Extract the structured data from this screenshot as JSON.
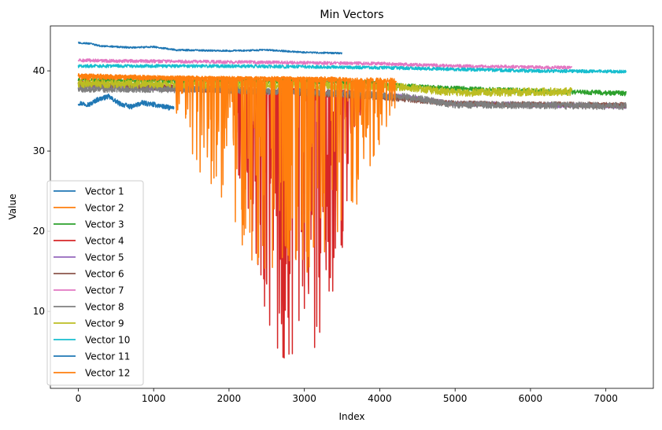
{
  "chart_data": {
    "type": "line",
    "title": "Min Vectors",
    "xlabel": "Index",
    "ylabel": "Value",
    "xlim": [
      -370,
      7630
    ],
    "ylim": [
      0.4,
      45.6
    ],
    "xticks": [
      0,
      1000,
      2000,
      3000,
      4000,
      5000,
      6000,
      7000
    ],
    "yticks": [
      10,
      20,
      30,
      40
    ],
    "grid": false,
    "legend_position": "lower-left",
    "series": [
      {
        "name": "Vector 1",
        "color": "#1f77b4",
        "length": 1270,
        "noise": 0.3,
        "spikes": null,
        "points": [
          [
            0,
            36.0
          ],
          [
            150,
            35.8
          ],
          [
            250,
            36.4
          ],
          [
            400,
            36.8
          ],
          [
            550,
            35.9
          ],
          [
            700,
            35.5
          ],
          [
            850,
            36.0
          ],
          [
            1000,
            35.8
          ],
          [
            1150,
            35.5
          ],
          [
            1270,
            35.3
          ]
        ]
      },
      {
        "name": "Vector 2",
        "color": "#ff7f0e",
        "length": 3480,
        "noise": 0.25,
        "spikes": null,
        "points": [
          [
            0,
            39.4
          ],
          [
            1000,
            39.2
          ],
          [
            1500,
            39.1
          ],
          [
            3480,
            39.0
          ]
        ]
      },
      {
        "name": "Vector 3",
        "color": "#2ca02c",
        "length": 7270,
        "noise": 0.3,
        "spikes": null,
        "points": [
          [
            0,
            38.8
          ],
          [
            2000,
            38.7
          ],
          [
            4000,
            38.5
          ],
          [
            4300,
            38.1
          ],
          [
            5000,
            37.8
          ],
          [
            6000,
            37.5
          ],
          [
            7270,
            37.2
          ]
        ]
      },
      {
        "name": "Vector 4",
        "color": "#d62728",
        "length": 3750,
        "noise": 0.4,
        "spikes": {
          "from": 2050,
          "to": 3750,
          "min": 2.0,
          "density": 0.35
        },
        "points": [
          [
            0,
            38.4
          ],
          [
            1000,
            38.0
          ],
          [
            2000,
            37.6
          ],
          [
            3750,
            37.2
          ]
        ]
      },
      {
        "name": "Vector 5",
        "color": "#9467bd",
        "length": 7270,
        "noise": 0.3,
        "spikes": null,
        "points": [
          [
            0,
            38.2
          ],
          [
            3000,
            37.2
          ],
          [
            4300,
            36.8
          ],
          [
            5000,
            35.9
          ],
          [
            7270,
            35.6
          ]
        ]
      },
      {
        "name": "Vector 6",
        "color": "#8c564b",
        "length": 7270,
        "noise": 0.35,
        "spikes": null,
        "points": [
          [
            0,
            38.3
          ],
          [
            2000,
            37.6
          ],
          [
            3500,
            37.0
          ],
          [
            4300,
            36.5
          ],
          [
            5000,
            35.9
          ],
          [
            7270,
            35.7
          ]
        ]
      },
      {
        "name": "Vector 7",
        "color": "#e377c2",
        "length": 6550,
        "noise": 0.2,
        "spikes": null,
        "points": [
          [
            0,
            41.3
          ],
          [
            2000,
            41.1
          ],
          [
            4000,
            40.9
          ],
          [
            5000,
            40.6
          ],
          [
            6550,
            40.4
          ]
        ]
      },
      {
        "name": "Vector 8",
        "color": "#7f7f7f",
        "length": 7270,
        "noise": 0.45,
        "spikes": null,
        "points": [
          [
            0,
            37.8
          ],
          [
            1500,
            37.7
          ],
          [
            3000,
            37.4
          ],
          [
            4300,
            36.8
          ],
          [
            5000,
            35.8
          ],
          [
            7270,
            35.6
          ]
        ]
      },
      {
        "name": "Vector 9",
        "color": "#bcbd22",
        "length": 6550,
        "noise": 0.5,
        "spikes": null,
        "points": [
          [
            0,
            38.4
          ],
          [
            2000,
            38.3
          ],
          [
            4000,
            38.1
          ],
          [
            4400,
            37.9
          ],
          [
            5000,
            37.3
          ],
          [
            6550,
            37.4
          ]
        ]
      },
      {
        "name": "Vector 10",
        "color": "#17becf",
        "length": 7270,
        "noise": 0.2,
        "spikes": null,
        "points": [
          [
            0,
            40.6
          ],
          [
            2000,
            40.6
          ],
          [
            4000,
            40.4
          ],
          [
            6000,
            40.0
          ],
          [
            7270,
            39.9
          ]
        ]
      },
      {
        "name": "Vector 11",
        "color": "#1f77b4",
        "length": 3500,
        "noise": 0.1,
        "spikes": null,
        "points": [
          [
            0,
            43.5
          ],
          [
            150,
            43.4
          ],
          [
            300,
            43.1
          ],
          [
            700,
            42.9
          ],
          [
            1000,
            43.0
          ],
          [
            1300,
            42.6
          ],
          [
            2000,
            42.5
          ],
          [
            2500,
            42.6
          ],
          [
            3000,
            42.3
          ],
          [
            3500,
            42.2
          ]
        ]
      },
      {
        "name": "Vector 12",
        "color": "#ff7f0e",
        "length": 4220,
        "noise": 0.3,
        "spikes": {
          "from": 1300,
          "to": 4220,
          "min": 14.0,
          "density": 0.3
        },
        "points": [
          [
            0,
            39.2
          ],
          [
            2000,
            39.0
          ],
          [
            4220,
            38.8
          ]
        ]
      }
    ]
  }
}
